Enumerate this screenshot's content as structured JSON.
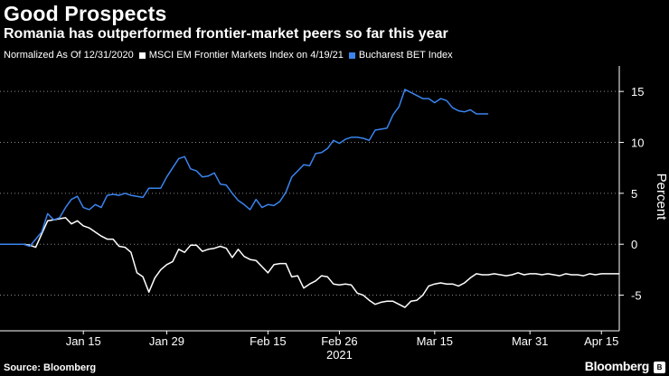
{
  "chart_data": {
    "type": "line",
    "title": "Good Prospects",
    "subtitle": "Romania has outperformed frontier-market peers so far this year",
    "note": "Normalized As Of 12/31/2020",
    "ylabel": "Percent",
    "xlabel": "2021",
    "ylim": [
      -8.5,
      17.5
    ],
    "xlim": [
      0,
      104
    ],
    "y_ticks": [
      -5,
      0,
      5,
      10,
      15
    ],
    "y_tick_labels": [
      "-5",
      "0",
      "5",
      "10",
      "15"
    ],
    "x_ticks": [
      14,
      28,
      45,
      57,
      73,
      89,
      101
    ],
    "x_tick_labels": [
      "Jan 15",
      "Jan 29",
      "Feb 15",
      "Feb 26",
      "Mar 15",
      "Mar 31",
      "Apr 15"
    ],
    "x_year_label": "2021",
    "grid": "horizontal dotted",
    "legend_position": "top-left",
    "series": [
      {
        "name": "MSCI EM Frontier Markets Index on 4/19/21",
        "color": "#ffffff",
        "x": [
          0,
          1,
          4,
          5,
          6,
          7,
          8,
          9,
          10,
          11,
          12,
          13,
          14,
          15,
          16,
          17,
          18,
          19,
          20,
          21,
          22,
          23,
          24,
          25,
          26,
          27,
          28,
          29,
          30,
          31,
          32,
          33,
          34,
          35,
          36,
          37,
          38,
          39,
          40,
          41,
          42,
          43,
          44,
          45,
          46,
          47,
          48,
          49,
          50,
          51,
          52,
          53,
          54,
          55,
          56,
          57,
          58,
          59,
          60,
          61,
          62,
          63,
          64,
          65,
          66,
          67,
          68,
          69,
          70,
          71,
          72,
          73,
          74,
          75,
          76,
          77,
          78,
          79,
          80,
          81,
          82,
          83,
          84,
          85,
          86,
          87,
          88,
          89,
          90,
          91,
          92,
          93,
          94,
          95,
          96,
          97,
          98,
          99,
          100,
          101,
          102,
          103,
          104
        ],
        "y": [
          0,
          0,
          0,
          -0.1,
          -0.3,
          1.0,
          2.3,
          2.4,
          2.5,
          2.6,
          2.0,
          2.3,
          1.8,
          1.6,
          1.2,
          0.8,
          0.5,
          0.5,
          -0.2,
          -0.3,
          -0.8,
          -2.8,
          -3.2,
          -4.7,
          -3.3,
          -2.5,
          -2.0,
          -1.7,
          -0.5,
          -0.8,
          -0.1,
          -0.1,
          -0.7,
          -0.5,
          -0.4,
          -0.2,
          -0.4,
          -1.3,
          -0.5,
          -1.2,
          -1.5,
          -1.6,
          -2.2,
          -2.8,
          -2.0,
          -1.9,
          -1.9,
          -3.2,
          -3.1,
          -4.3,
          -3.9,
          -3.6,
          -3.1,
          -3.2,
          -3.9,
          -4.0,
          -3.9,
          -4.0,
          -4.8,
          -5.0,
          -5.5,
          -5.9,
          -5.7,
          -5.6,
          -5.6,
          -5.9,
          -6.2,
          -5.6,
          -5.5,
          -5.0,
          -4.1,
          -3.9,
          -3.8,
          -3.9,
          -3.9,
          -4.1,
          -3.8,
          -3.3,
          -2.9,
          -3.0,
          -3.0,
          -2.9,
          -3.0,
          -3.1,
          -3.0,
          -2.8,
          -3.0,
          -2.9,
          -2.9,
          -3.0,
          -2.9,
          -3.0,
          -3.1,
          -2.9,
          -3.0,
          -3.0,
          -3.1,
          -2.9,
          -3.0,
          -2.9,
          -2.9,
          -2.9,
          -2.9
        ]
      },
      {
        "name": "Bucharest BET Index",
        "color": "#3a84ee",
        "x": [
          0,
          4,
          5,
          6,
          7,
          8,
          9,
          10,
          11,
          12,
          13,
          14,
          15,
          16,
          17,
          18,
          19,
          20,
          21,
          22,
          23,
          24,
          25,
          26,
          27,
          28,
          29,
          30,
          31,
          32,
          33,
          34,
          35,
          36,
          37,
          38,
          39,
          40,
          41,
          42,
          43,
          44,
          45,
          46,
          47,
          48,
          49,
          50,
          51,
          52,
          53,
          54,
          55,
          56,
          57,
          58,
          59,
          60,
          61,
          62,
          63,
          64,
          65,
          66,
          67,
          68,
          69,
          70,
          71,
          72,
          73,
          74,
          75,
          76,
          77,
          78,
          79,
          80,
          81,
          82
        ],
        "y": [
          0,
          0,
          -0.2,
          0.5,
          1.2,
          3.0,
          2.4,
          2.6,
          3.6,
          4.4,
          4.7,
          3.6,
          3.4,
          3.9,
          3.6,
          4.8,
          4.9,
          4.8,
          5.0,
          4.8,
          4.7,
          4.6,
          5.5,
          5.5,
          5.5,
          6.6,
          7.5,
          8.4,
          8.6,
          7.4,
          7.2,
          6.6,
          6.7,
          7.0,
          5.9,
          5.8,
          5.0,
          4.3,
          3.9,
          3.4,
          4.4,
          3.6,
          3.9,
          3.8,
          4.2,
          5.1,
          6.6,
          7.2,
          7.8,
          7.7,
          8.9,
          9.0,
          9.4,
          10.2,
          9.9,
          10.3,
          10.5,
          10.5,
          10.4,
          10.2,
          11.2,
          11.3,
          11.4,
          12.7,
          13.5,
          15.2,
          14.9,
          14.6,
          14.3,
          14.3,
          13.9,
          14.3,
          14.1,
          13.4,
          13.1,
          13.0,
          13.2,
          12.8,
          12.8,
          12.8
        ]
      }
    ]
  },
  "footer": {
    "source": "Source: Bloomberg",
    "brand": "Bloomberg",
    "brand_icon": "bloomberg-logo-icon"
  }
}
